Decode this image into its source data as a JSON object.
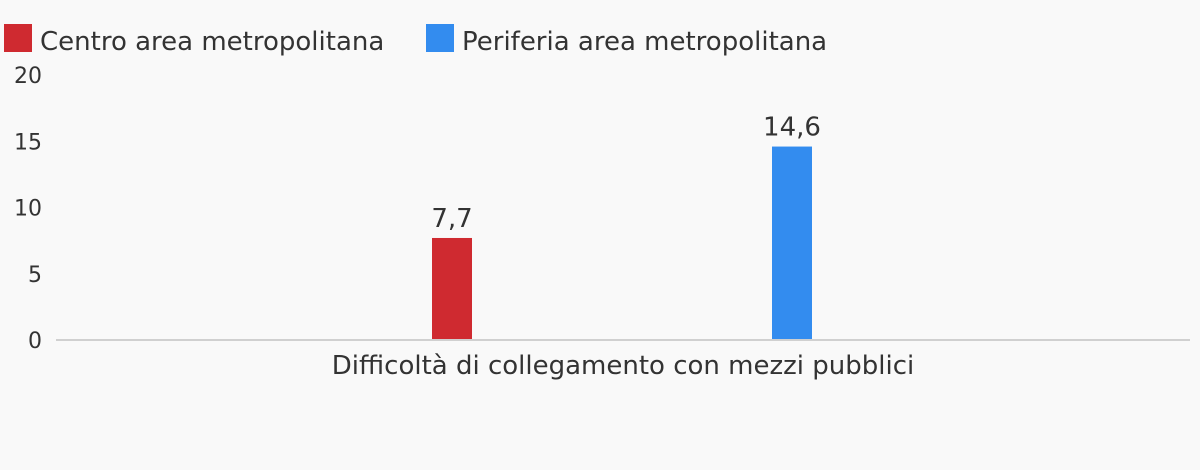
{
  "chart_data": {
    "type": "bar",
    "categories": [
      "Difficoltà di collegamento con mezzi pubblici"
    ],
    "series": [
      {
        "name": "Centro area metropolitana",
        "values": [
          7.7
        ],
        "color": "#cf2a30",
        "label": "7,7"
      },
      {
        "name": "Periferia area metropolitana",
        "values": [
          14.6
        ],
        "color": "#338cef",
        "label": "14,6"
      }
    ],
    "y_ticks": [
      "0",
      "5",
      "10",
      "15",
      "20"
    ],
    "ylim": [
      0,
      20
    ],
    "legend_position": "top-left",
    "grid": false,
    "title": "",
    "xlabel": "",
    "ylabel": ""
  }
}
